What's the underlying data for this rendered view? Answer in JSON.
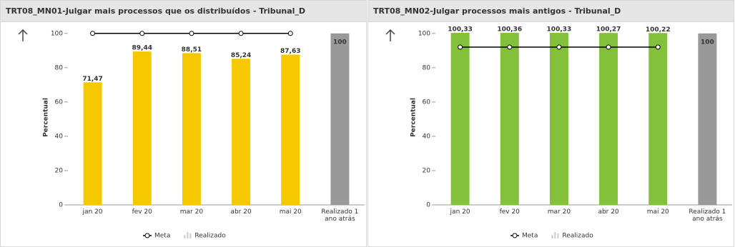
{
  "chart_data": [
    {
      "type": "bar",
      "title": "TRT08_MN01-Julgar mais processos que os distribuídos - Tribunal_D",
      "y_label": "Percentual",
      "categories": [
        "jan 20",
        "fev 20",
        "mar 20",
        "abr 20",
        "mai 20",
        "Realizado 1 ano atrás"
      ],
      "series": [
        {
          "name": "Realizado",
          "type": "bar",
          "color": "#f5c800",
          "colors": [
            "#f5c800",
            "#f5c800",
            "#f5c800",
            "#f5c800",
            "#f5c800",
            "#999999"
          ],
          "values": [
            71.47,
            89.44,
            88.51,
            85.24,
            87.63,
            100
          ],
          "value_labels": [
            "71,47",
            "89,44",
            "88,51",
            "85,24",
            "87,63",
            "100"
          ]
        },
        {
          "name": "Meta",
          "type": "line",
          "color": "#000000",
          "values": [
            100,
            100,
            100,
            100,
            100,
            null
          ]
        }
      ],
      "ylim": [
        0,
        102
      ],
      "yticks": [
        0,
        20,
        40,
        60,
        80,
        100
      ],
      "legend": "bottom"
    },
    {
      "type": "bar",
      "title": "TRT08_MN02-Julgar processos mais antigos - Tribunal_D",
      "y_label": "Percentual",
      "categories": [
        "jan 20",
        "fev 20",
        "mar 20",
        "abr 20",
        "mai 20",
        "Realizado 1 ano atrás"
      ],
      "series": [
        {
          "name": "Realizado",
          "type": "bar",
          "color": "#84c13b",
          "colors": [
            "#84c13b",
            "#84c13b",
            "#84c13b",
            "#84c13b",
            "#84c13b",
            "#999999"
          ],
          "values": [
            100.33,
            100.36,
            100.33,
            100.27,
            100.22,
            100
          ],
          "value_labels": [
            "100,33",
            "100,36",
            "100,33",
            "100,27",
            "100,22",
            "100"
          ]
        },
        {
          "name": "Meta",
          "type": "line",
          "color": "#000000",
          "values": [
            92,
            92,
            92,
            92,
            92,
            null
          ]
        }
      ],
      "ylim": [
        0,
        102
      ],
      "yticks": [
        0,
        20,
        40,
        60,
        80,
        100
      ],
      "legend": "bottom"
    }
  ]
}
